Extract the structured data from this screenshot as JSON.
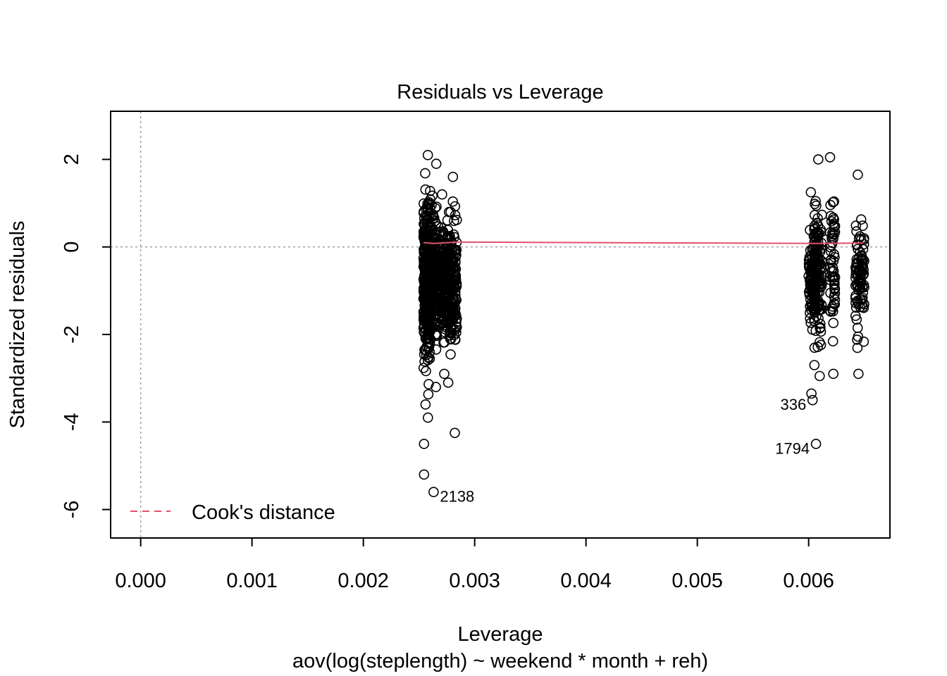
{
  "chart_data": {
    "type": "scatter",
    "title": "Residuals vs Leverage",
    "xlabel": "Leverage",
    "subtitle": "aov(log(steplength) ~ weekend * month + reh)",
    "ylabel": "Standardized residuals",
    "xlim": [
      -0.00027,
      0.00673
    ],
    "ylim": [
      -6.65,
      3.1
    ],
    "xticks": [
      0.0,
      0.001,
      0.002,
      0.003,
      0.004,
      0.005,
      0.006
    ],
    "xtick_labels": [
      "0.000",
      "0.001",
      "0.002",
      "0.003",
      "0.004",
      "0.005",
      "0.006"
    ],
    "yticks": [
      -6,
      -4,
      -2,
      0,
      2
    ],
    "ytick_labels": [
      "-6",
      "-4",
      "-2",
      "0",
      "2"
    ],
    "reference_lines": {
      "h": 0,
      "v": 0,
      "style": "dotted",
      "color": "#9e9e9e"
    },
    "legend": {
      "position": "bottom-left",
      "label": "Cook's distance",
      "color": "#DF536B",
      "style": "dashed"
    },
    "clusters": [
      {
        "x_min": 0.00254,
        "x_max": 0.0026,
        "y_min": -3.6,
        "y_max": 2.1,
        "n": 360
      },
      {
        "x_min": 0.0026,
        "x_max": 0.00266,
        "y_min": -3.2,
        "y_max": 1.9,
        "n": 160
      },
      {
        "x_min": 0.00266,
        "x_max": 0.00276,
        "y_min": -2.9,
        "y_max": 1.2,
        "n": 200
      },
      {
        "x_min": 0.00276,
        "x_max": 0.00284,
        "y_min": -3.1,
        "y_max": 1.6,
        "n": 170
      },
      {
        "x_min": 0.006,
        "x_max": 0.00606,
        "y_min": -2.7,
        "y_max": 1.25,
        "n": 110
      },
      {
        "x_min": 0.00605,
        "x_max": 0.00612,
        "y_min": -2.95,
        "y_max": 2.0,
        "n": 110
      },
      {
        "x_min": 0.00619,
        "x_max": 0.00624,
        "y_min": -2.9,
        "y_max": 2.05,
        "n": 60
      },
      {
        "x_min": 0.00642,
        "x_max": 0.0065,
        "y_min": -2.9,
        "y_max": 1.65,
        "n": 90
      }
    ],
    "extra_points": [
      {
        "x": 0.002545,
        "y": -4.5
      },
      {
        "x": 0.002545,
        "y": -5.2
      },
      {
        "x": 0.00258,
        "y": -3.9
      },
      {
        "x": 0.002631,
        "y": -5.6
      },
      {
        "x": 0.002822,
        "y": -4.25
      },
      {
        "x": 0.006025,
        "y": -3.35
      },
      {
        "x": 0.006035,
        "y": -3.5
      },
      {
        "x": 0.006066,
        "y": -4.5
      }
    ],
    "cooks_line": {
      "x": [
        0.00254,
        0.00263,
        0.00284,
        0.00606,
        0.00649
      ],
      "y": [
        0.1,
        0.08,
        0.11,
        0.08,
        0.09
      ],
      "color": "#DF536B"
    },
    "annotations": [
      {
        "text": "2138",
        "x": 0.002631,
        "y": -5.6,
        "align": "left"
      },
      {
        "text": "336",
        "x": 0.006035,
        "y": -3.5,
        "align": "right"
      },
      {
        "text": "1794",
        "x": 0.006066,
        "y": -4.5,
        "align": "right"
      }
    ]
  }
}
